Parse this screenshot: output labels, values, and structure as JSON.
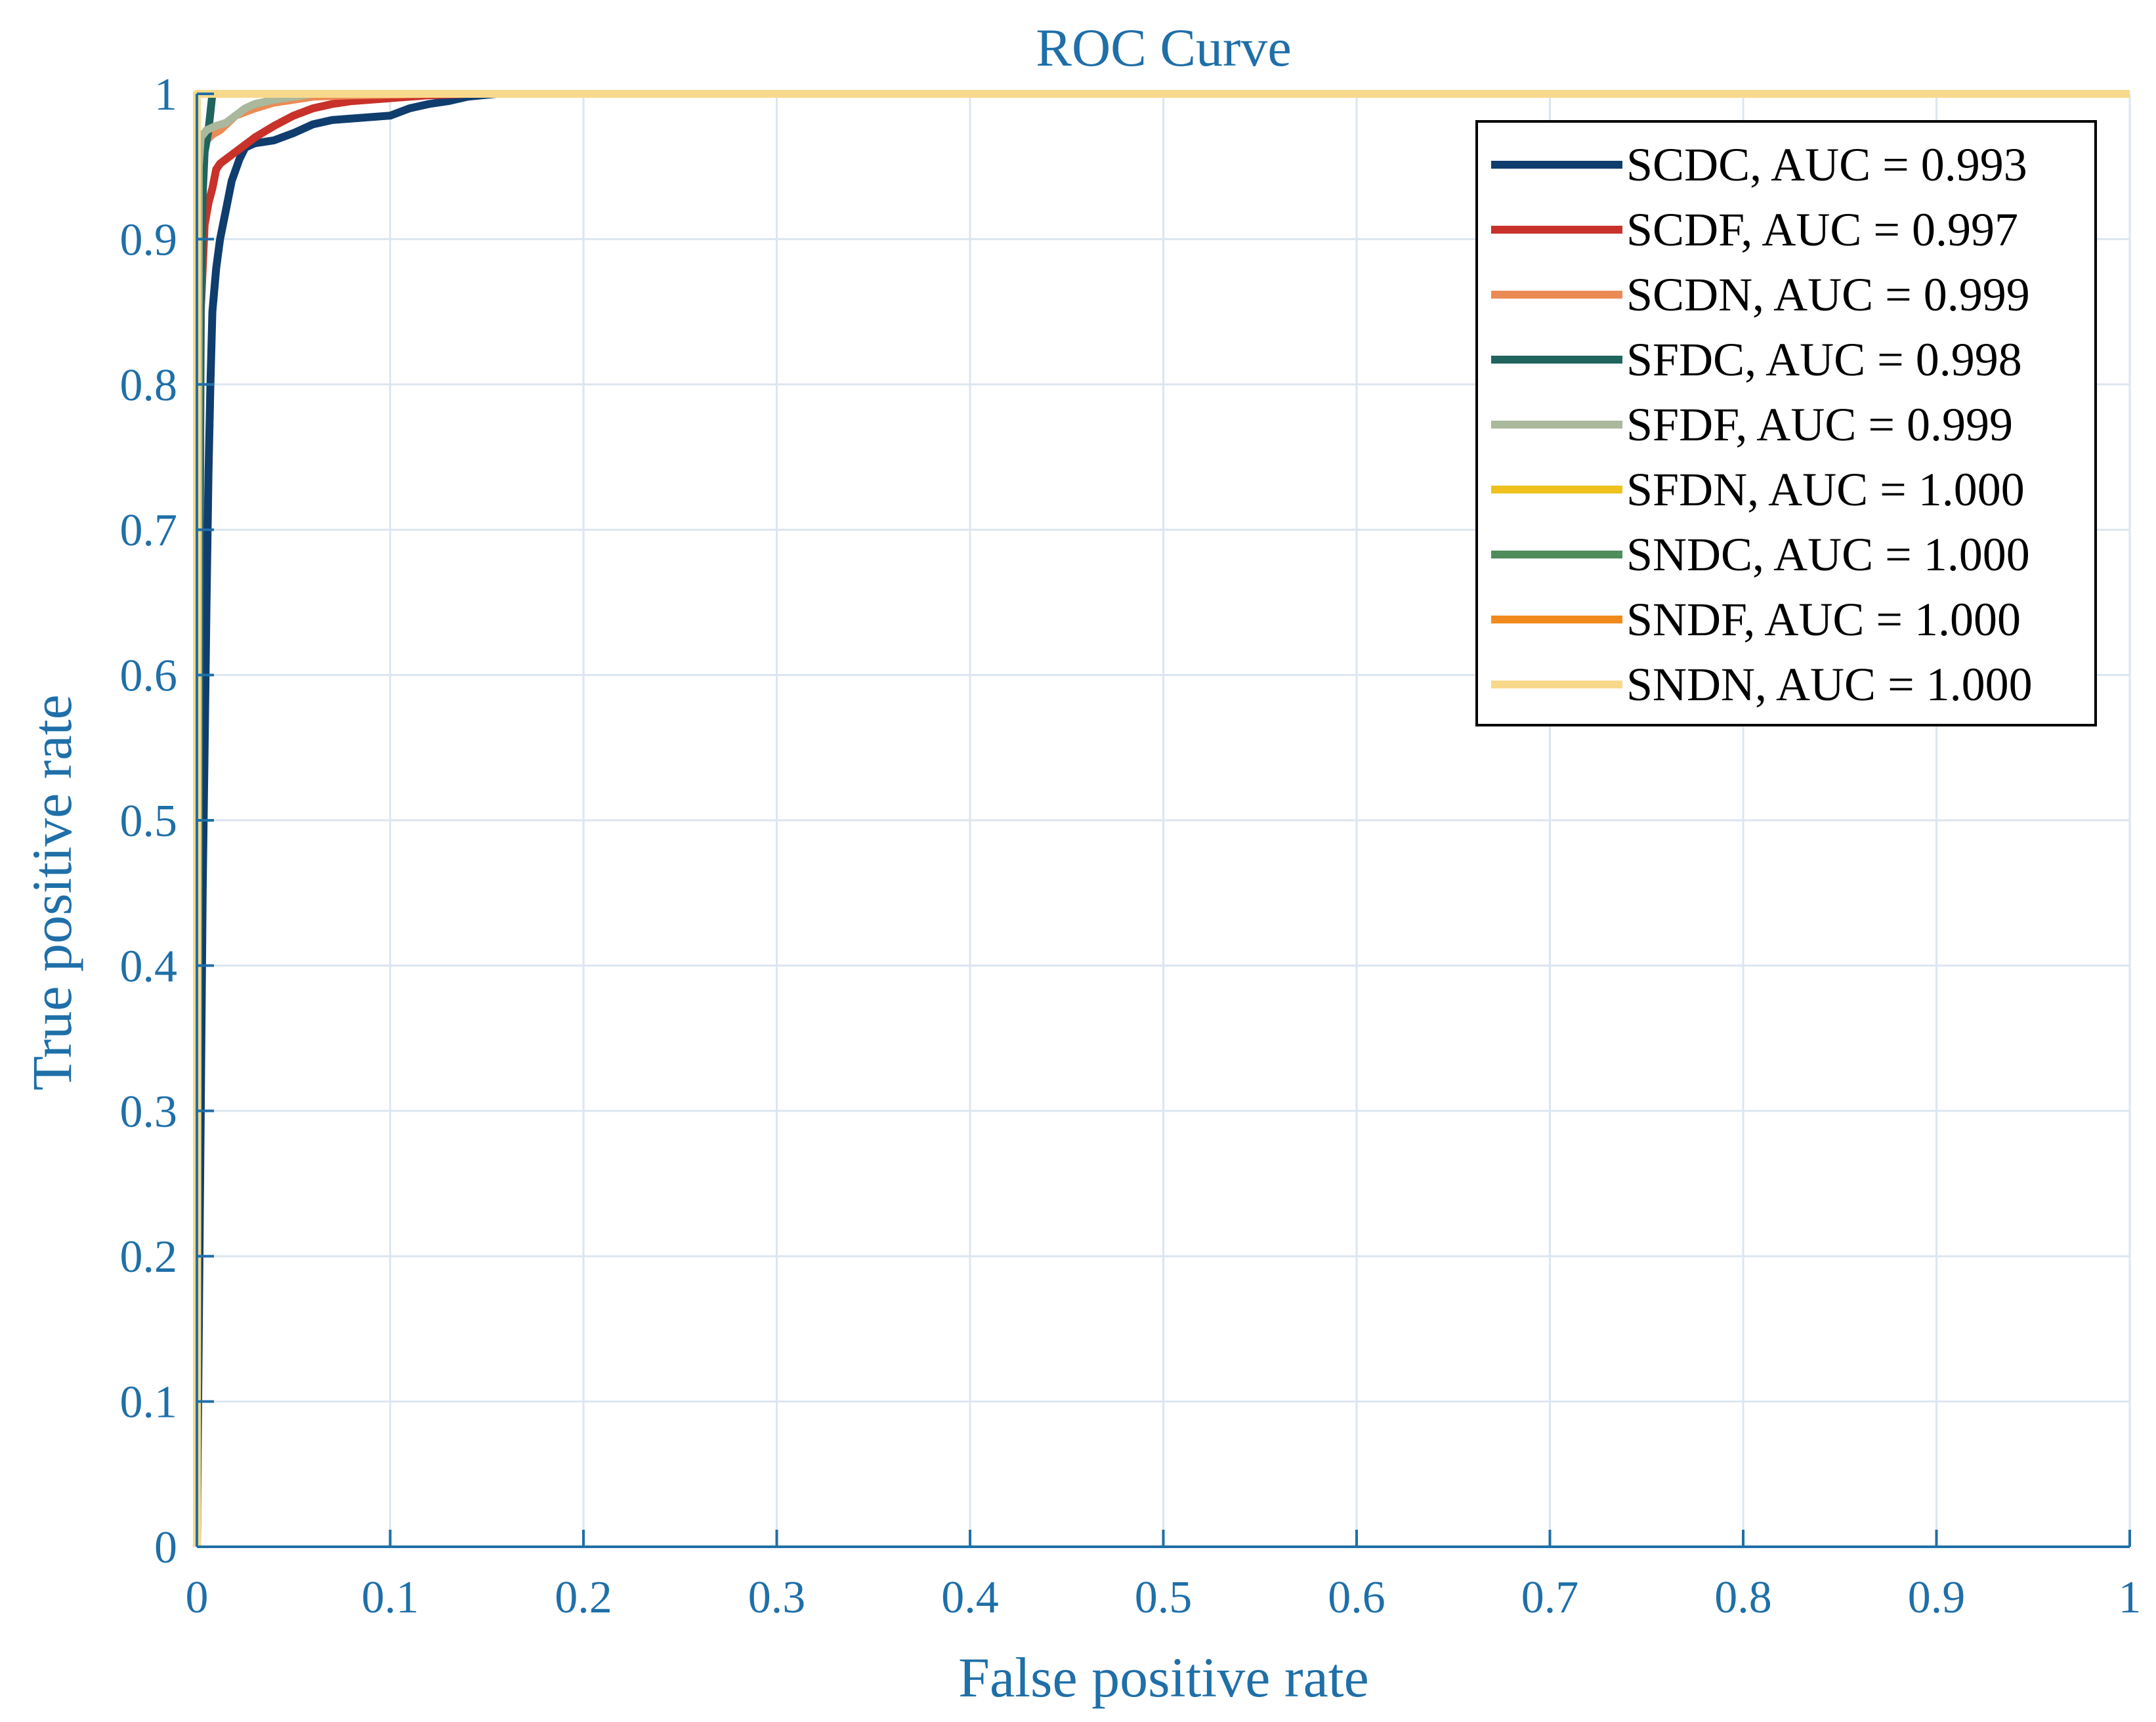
{
  "colors": {
    "axis_text": "#1f6fa8",
    "grid": "#dce6f0",
    "axis_line": "#1f6fa8",
    "legend_border": "#000000"
  },
  "chart_data": {
    "type": "line",
    "title": "ROC Curve",
    "xlabel": "False positive rate",
    "ylabel": "True positive rate",
    "xlim": [
      0,
      1
    ],
    "ylim": [
      0,
      1
    ],
    "grid": true,
    "legend_position": "top-right",
    "x_ticks": [
      "0",
      "0.1",
      "0.2",
      "0.3",
      "0.4",
      "0.5",
      "0.6",
      "0.7",
      "0.8",
      "0.9",
      "1"
    ],
    "y_ticks": [
      "0",
      "0.1",
      "0.2",
      "0.3",
      "0.4",
      "0.5",
      "0.6",
      "0.7",
      "0.8",
      "0.9",
      "1"
    ],
    "series": [
      {
        "name": "SCDC, AUC = 0.993",
        "color": "#0f3d6e",
        "x": [
          0,
          0.002,
          0.003,
          0.004,
          0.005,
          0.006,
          0.007,
          0.008,
          0.01,
          0.012,
          0.015,
          0.018,
          0.022,
          0.025,
          0.03,
          0.04,
          0.05,
          0.06,
          0.07,
          0.08,
          0.1,
          0.11,
          0.12,
          0.13,
          0.14,
          0.155,
          1
        ],
        "y": [
          0,
          0.3,
          0.45,
          0.55,
          0.65,
          0.74,
          0.8,
          0.85,
          0.88,
          0.9,
          0.92,
          0.94,
          0.955,
          0.963,
          0.966,
          0.968,
          0.973,
          0.979,
          0.982,
          0.983,
          0.985,
          0.99,
          0.993,
          0.995,
          0.998,
          1.0,
          1.0
        ]
      },
      {
        "name": "SCDF, AUC = 0.997",
        "color": "#c8322a",
        "x": [
          0,
          0.001,
          0.002,
          0.004,
          0.006,
          0.008,
          0.01,
          0.012,
          0.015,
          0.02,
          0.03,
          0.04,
          0.05,
          0.06,
          0.07,
          0.08,
          0.1,
          0.12,
          0.14,
          1
        ],
        "y": [
          0,
          0.6,
          0.85,
          0.91,
          0.925,
          0.935,
          0.948,
          0.952,
          0.955,
          0.96,
          0.97,
          0.978,
          0.985,
          0.99,
          0.993,
          0.995,
          0.997,
          0.999,
          1.0,
          1.0
        ]
      },
      {
        "name": "SCDN, AUC = 0.999",
        "color": "#ec8a56",
        "x": [
          0,
          0.001,
          0.003,
          0.005,
          0.008,
          0.012,
          0.016,
          0.02,
          0.03,
          0.04,
          0.05,
          0.06,
          0.08,
          0.1,
          0.12,
          1
        ],
        "y": [
          0,
          0.85,
          0.96,
          0.968,
          0.972,
          0.975,
          0.98,
          0.985,
          0.99,
          0.994,
          0.996,
          0.998,
          0.999,
          0.9995,
          1.0,
          1.0
        ]
      },
      {
        "name": "SFDC, AUC = 0.998",
        "color": "#20645e",
        "x": [
          0,
          0.001,
          0.002,
          0.003,
          0.004,
          0.006,
          0.008,
          0.01,
          0.02,
          0.05,
          0.1,
          1
        ],
        "y": [
          0,
          0.5,
          0.85,
          0.93,
          0.96,
          0.975,
          1.0,
          1.0,
          1.0,
          1.0,
          1.0,
          1.0
        ]
      },
      {
        "name": "SFDF, AUC = 0.999",
        "color": "#aab89c",
        "x": [
          0,
          0.001,
          0.002,
          0.005,
          0.01,
          0.015,
          0.02,
          0.025,
          0.03,
          0.04,
          0.05,
          0.06,
          1
        ],
        "y": [
          0,
          0.95,
          0.97,
          0.975,
          0.978,
          0.98,
          0.985,
          0.99,
          0.993,
          0.996,
          0.998,
          1.0,
          1.0
        ]
      },
      {
        "name": "SFDN, AUC = 1.000",
        "color": "#eec21c",
        "x": [
          0,
          0.0,
          0.002,
          1
        ],
        "y": [
          0,
          1.0,
          1.0,
          1.0
        ]
      },
      {
        "name": "SNDC, AUC = 1.000",
        "color": "#4e8c5a",
        "x": [
          0,
          0.0,
          0.003,
          1
        ],
        "y": [
          0,
          1.0,
          1.0,
          1.0
        ]
      },
      {
        "name": "SNDF, AUC = 1.000",
        "color": "#f08a1c",
        "x": [
          0,
          0.0,
          0.002,
          1
        ],
        "y": [
          0,
          1.0,
          1.0,
          1.0
        ]
      },
      {
        "name": "SNDN, AUC = 1.000",
        "color": "#f8d98c",
        "x": [
          0,
          0.0,
          0.001,
          1
        ],
        "y": [
          0,
          1.0,
          1.0,
          1.0
        ]
      }
    ]
  }
}
